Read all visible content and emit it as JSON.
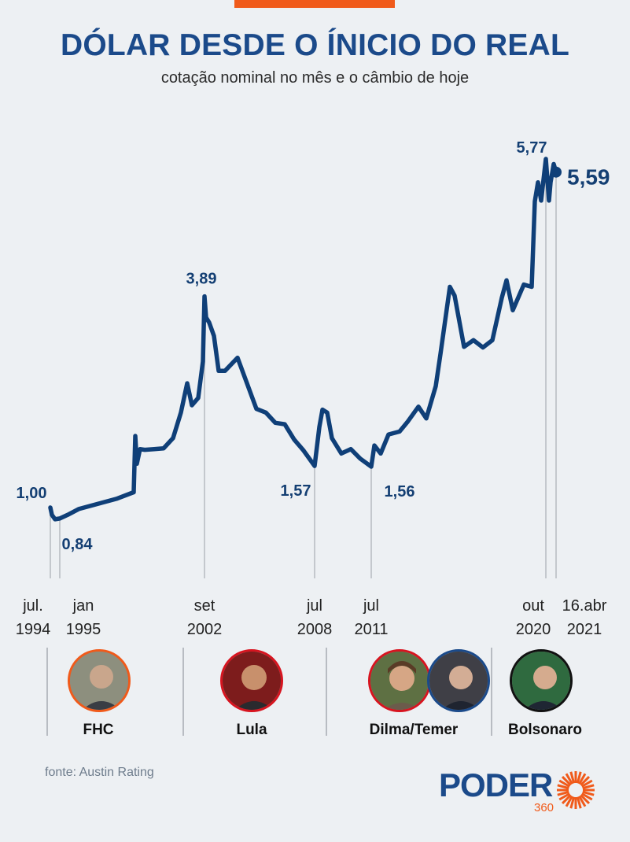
{
  "title": "DÓLAR DESDE O ÍNICIO DO REAL",
  "subtitle": "cotação nominal no mês e o câmbio de hoje",
  "source": "fonte: Austin Rating",
  "logo": {
    "word": "PODER",
    "number": "360",
    "icon": "sun-burst-icon"
  },
  "colors": {
    "line": "#0f3f78",
    "accent": "#f05a1a",
    "title": "#1b4a8a"
  },
  "chart_data": {
    "type": "line",
    "title": "DÓLAR DESDE O ÍNICIO DO REAL",
    "subtitle": "cotação nominal no mês e o câmbio de hoje",
    "xlabel": "",
    "ylabel": "",
    "grid": false,
    "x_start": "1994-07",
    "x_end": "2021-04-16",
    "x": [
      "1994-07",
      "1994-08",
      "1994-10",
      "1995-01",
      "1995-06",
      "1996-01",
      "1997-01",
      "1998-01",
      "1998-12",
      "1999-01",
      "1999-02",
      "1999-04",
      "1999-07",
      "2000-01",
      "2000-07",
      "2001-01",
      "2001-06",
      "2001-10",
      "2002-01",
      "2002-05",
      "2002-08",
      "2002-09",
      "2002-10",
      "2002-12",
      "2003-03",
      "2003-06",
      "2003-10",
      "2004-06",
      "2004-12",
      "2005-06",
      "2005-12",
      "2006-06",
      "2006-12",
      "2007-06",
      "2007-12",
      "2008-07",
      "2008-10",
      "2008-12",
      "2009-03",
      "2009-06",
      "2009-12",
      "2010-06",
      "2010-12",
      "2011-07",
      "2011-09",
      "2012-01",
      "2012-06",
      "2013-01",
      "2013-06",
      "2014-01",
      "2014-06",
      "2014-12",
      "2015-03",
      "2015-09",
      "2015-12",
      "2016-06",
      "2016-12",
      "2017-06",
      "2017-12",
      "2018-06",
      "2018-09",
      "2019-01",
      "2019-08",
      "2020-01",
      "2020-03",
      "2020-05",
      "2020-07",
      "2020-10",
      "2020-12",
      "2021-01",
      "2021-03",
      "2021-04-16"
    ],
    "y": [
      1.0,
      0.9,
      0.84,
      0.85,
      0.9,
      0.98,
      1.05,
      1.12,
      1.21,
      1.98,
      1.6,
      1.8,
      1.79,
      1.8,
      1.81,
      1.95,
      2.3,
      2.7,
      2.4,
      2.5,
      3.0,
      3.89,
      3.6,
      3.53,
      3.35,
      2.87,
      2.87,
      3.05,
      2.7,
      2.35,
      2.3,
      2.16,
      2.14,
      1.93,
      1.78,
      1.57,
      2.1,
      2.34,
      2.3,
      1.95,
      1.74,
      1.8,
      1.67,
      1.56,
      1.85,
      1.74,
      2.0,
      2.04,
      2.17,
      2.38,
      2.22,
      2.66,
      3.1,
      4.02,
      3.9,
      3.2,
      3.29,
      3.19,
      3.29,
      3.87,
      4.11,
      3.7,
      4.05,
      4.02,
      5.19,
      5.45,
      5.2,
      5.77,
      5.2,
      5.45,
      5.7,
      5.59
    ],
    "annotations": [
      {
        "label": "1,00",
        "x": "1994-07",
        "y": 1.0
      },
      {
        "label": "0,84",
        "x": "1994-10",
        "y": 0.84
      },
      {
        "label": "3,89",
        "x": "2002-09",
        "y": 3.89
      },
      {
        "label": "1,57",
        "x": "2008-07",
        "y": 1.57
      },
      {
        "label": "1,56",
        "x": "2011-07",
        "y": 1.56
      },
      {
        "label": "5,77",
        "x": "2020-10",
        "y": 5.77
      },
      {
        "label": "5,59",
        "x": "2021-04-16",
        "y": 5.59
      }
    ],
    "date_labels": [
      {
        "text": "jul.\n1994",
        "x": "1994-07"
      },
      {
        "text": "jan\n1995",
        "x": "1995-01"
      },
      {
        "text": "set\n2002",
        "x": "2002-09"
      },
      {
        "text": "jul\n2008",
        "x": "2008-07"
      },
      {
        "text": "jul\n2011",
        "x": "2011-07"
      },
      {
        "text": "out\n2020",
        "x": "2020-10"
      },
      {
        "text": "16.abr\n2021",
        "x": "2021-04-16"
      }
    ]
  },
  "presidents": [
    {
      "name": "FHC",
      "ring": "#f05a1a"
    },
    {
      "name": "Lula",
      "ring": "#d7141f"
    },
    {
      "name": "Dilma/Temer",
      "rings": [
        "#d7141f",
        "#1b4a8a"
      ]
    },
    {
      "name": "Bolsonaro",
      "ring": "#111111"
    }
  ]
}
